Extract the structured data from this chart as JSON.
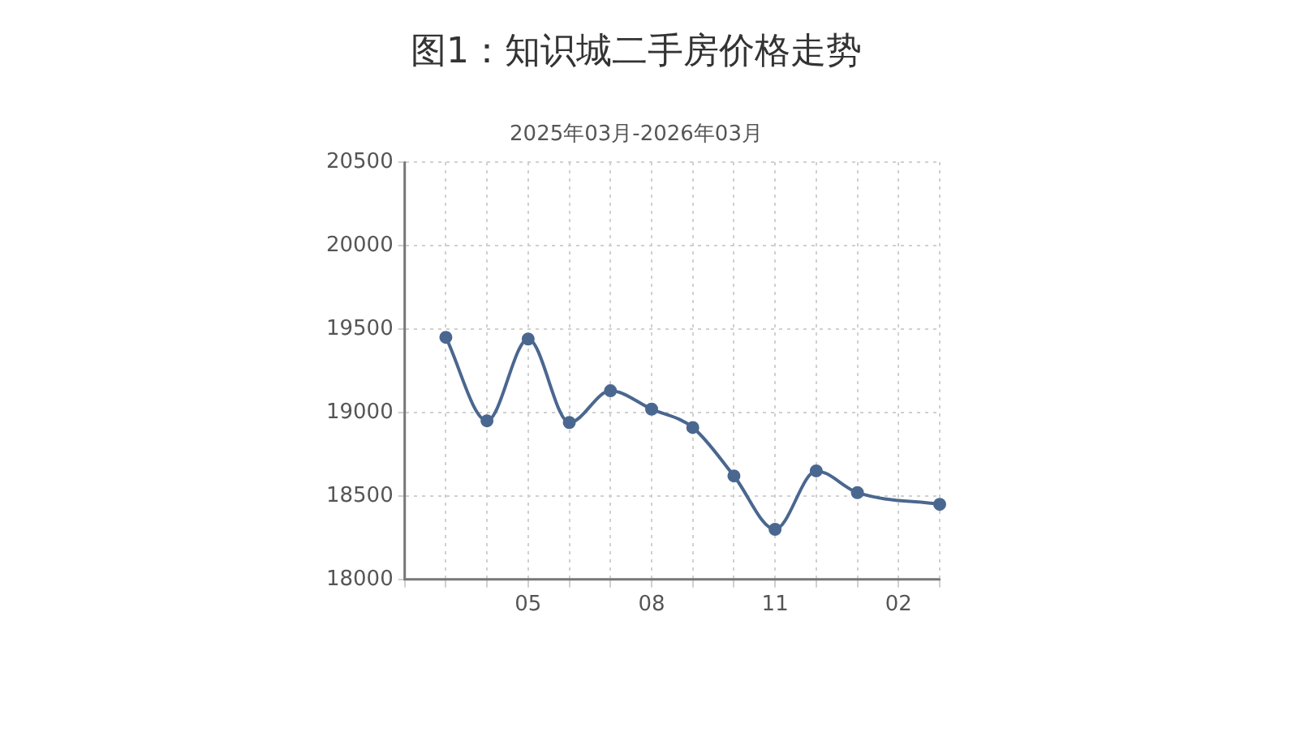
{
  "chart_data": {
    "type": "line",
    "title": "图1：知识城二手房价格走势",
    "subtitle": "2025年03月-2026年03月",
    "categories": [
      null,
      null,
      null,
      "05",
      null,
      null,
      "08",
      null,
      null,
      "11",
      null,
      null,
      "02",
      null
    ],
    "series": [
      {
        "color": "#4a6790",
        "values": [
          null,
          19450,
          18950,
          19440,
          18940,
          19130,
          19020,
          18910,
          18620,
          18300,
          18650,
          18520,
          null,
          18450
        ]
      }
    ],
    "ylim": [
      18000,
      20500
    ],
    "yticks": [
      18000,
      18500,
      19000,
      19500,
      20000,
      20500
    ],
    "grid": true,
    "legend": false,
    "marker": "circle",
    "line_style": "solid"
  }
}
